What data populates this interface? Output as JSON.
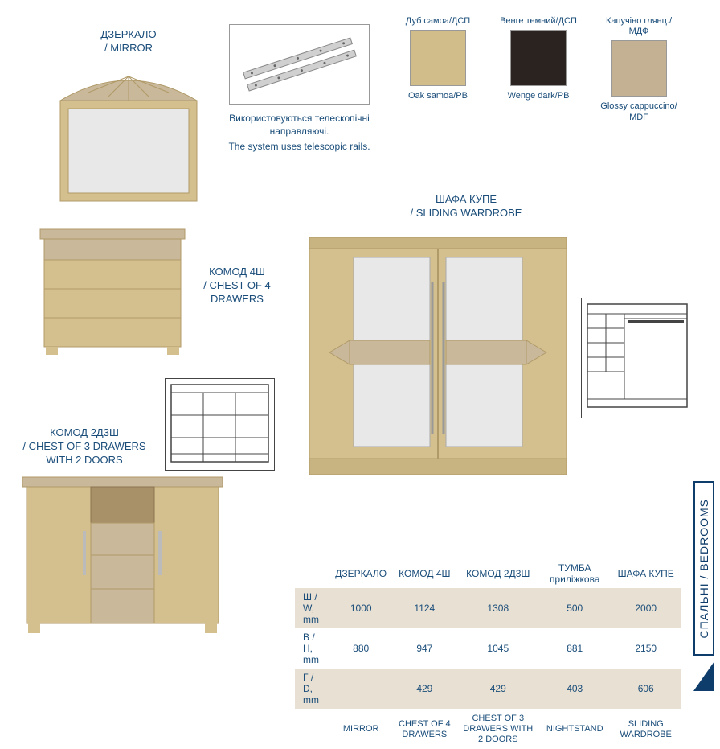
{
  "mirror": {
    "uk": "ДЗЕРКАЛО",
    "en": "/ MIRROR"
  },
  "rails": {
    "uk": "Використовуються телескопічні направляючі.",
    "en": "The system uses telescopic rails."
  },
  "swatches": [
    {
      "top_uk": "Дуб самоа/ДСП",
      "bottom": "Oak samoa/PB",
      "color": "#d1bd8a"
    },
    {
      "top_uk": "Венге темний/ДСП",
      "bottom": "Wenge dark/PB",
      "color": "#2b2320"
    },
    {
      "top_uk": "Капучіно глянц./ МДФ",
      "bottom": "Glossy cappuccino/ MDF",
      "color": "#c4b193"
    }
  ],
  "chest4": {
    "uk": "КОМОД 4Ш",
    "en": "/ CHEST OF 4 DRAWERS"
  },
  "wardrobe": {
    "uk": "ШАФА КУПЕ",
    "en": "/ SLIDING WARDROBE"
  },
  "chest2": {
    "uk": "КОМОД 2Д3Ш",
    "en": "/ CHEST OF 3 DRAW­ERS WITH 2 DOORS"
  },
  "table": {
    "cols_uk": [
      "ДЗЕРКАЛО",
      "КОМОД 4Ш",
      "КОМОД 2Д3Ш",
      "ТУМБА приліжкова",
      "ШАФА КУПЕ"
    ],
    "cols_en": [
      "MIRROR",
      "CHEST OF 4 DRAWERS",
      "CHEST OF 3 DRAWERS WITH 2 DOORS",
      "NIGHTSTAND",
      "SLIDING WARDROBE"
    ],
    "rows": [
      {
        "label": "Ш / W, mm",
        "vals": [
          "1000",
          "1124",
          "1308",
          "500",
          "2000"
        ],
        "band": true
      },
      {
        "label": "В / H, mm",
        "vals": [
          "880",
          "947",
          "1045",
          "881",
          "2150"
        ],
        "band": false
      },
      {
        "label": "Г / D, mm",
        "vals": [
          "",
          "429",
          "429",
          "403",
          "606"
        ],
        "band": true
      }
    ]
  },
  "side_tab": "СПАЛЬНІ / BEDROOMS",
  "colors": {
    "wood": "#d4c08e",
    "wood_dark": "#b09a68",
    "cappuccino": "#c9b89a",
    "glass": "#e8e8e8",
    "text": "#1a4d7a",
    "band": "#e8e0d2",
    "navy": "#0f3d6b"
  }
}
